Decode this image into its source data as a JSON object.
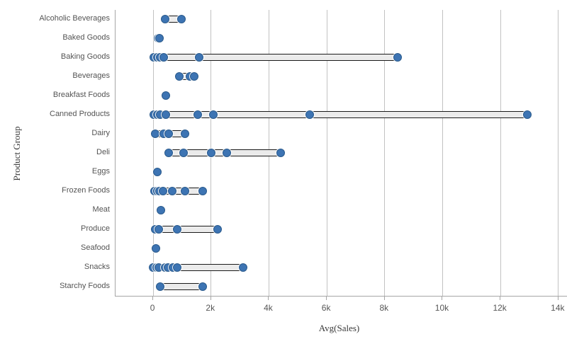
{
  "chart_data": {
    "type": "scatter",
    "subtype": "distribution-plot",
    "title": "",
    "xlabel": "Avg(Sales)",
    "ylabel": "Product Group",
    "legend": "none",
    "grid": "vertical-only",
    "xlim": [
      -1300,
      14200
    ],
    "x_ticks": [
      {
        "label": "0",
        "value": 0
      },
      {
        "label": "2k",
        "value": 2000
      },
      {
        "label": "4k",
        "value": 4000
      },
      {
        "label": "6k",
        "value": 6000
      },
      {
        "label": "8k",
        "value": 8000
      },
      {
        "label": "10k",
        "value": 10000
      },
      {
        "label": "12k",
        "value": 12000
      },
      {
        "label": "14k",
        "value": 14000
      }
    ],
    "categories": [
      {
        "label": "Alcoholic Beverages",
        "values": [
          410,
          980
        ]
      },
      {
        "label": "Baked Goods",
        "values": [
          160,
          230
        ]
      },
      {
        "label": "Baking Goods",
        "values": [
          30,
          140,
          250,
          370,
          1590,
          8450
        ]
      },
      {
        "label": "Beverages",
        "values": [
          900,
          1270,
          1420
        ]
      },
      {
        "label": "Breakfast Foods",
        "values": [
          450
        ]
      },
      {
        "label": "Canned Products",
        "values": [
          30,
          140,
          250,
          450,
          1530,
          2080,
          5400,
          12920
        ]
      },
      {
        "label": "Dairy",
        "values": [
          80,
          370,
          530,
          1100
        ]
      },
      {
        "label": "Deli",
        "values": [
          530,
          1060,
          2000,
          2550,
          4400
        ]
      },
      {
        "label": "Eggs",
        "values": [
          140
        ]
      },
      {
        "label": "Frozen Foods",
        "values": [
          40,
          140,
          220,
          330,
          650,
          1100,
          1700
        ]
      },
      {
        "label": "Meat",
        "values": [
          270
        ]
      },
      {
        "label": "Produce",
        "values": [
          80,
          200,
          840,
          2230
        ]
      },
      {
        "label": "Seafood",
        "values": [
          100
        ]
      },
      {
        "label": "Snacks",
        "values": [
          10,
          110,
          200,
          410,
          510,
          690,
          840,
          3100
        ]
      },
      {
        "label": "Starchy Foods",
        "values": [
          250,
          1700
        ]
      }
    ],
    "colors": {
      "point_fill": "#3d74b3",
      "point_border": "#2a5a8c",
      "range_bar_fill": "#ebebeb",
      "range_bar_border": "#1a1a1a",
      "gridline": "#c2c2c2",
      "axis_line": "#a6a6a6",
      "label_text": "#545454"
    }
  }
}
